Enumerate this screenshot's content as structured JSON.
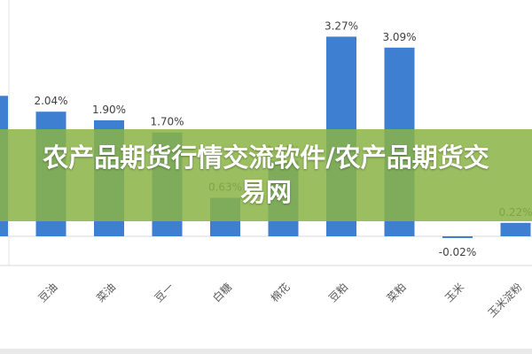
{
  "banner": {
    "title": "农产品期货行情交流软件/农产品期货交易网"
  },
  "colors": {
    "bar": "#3f7fd1",
    "banner": "#89b346",
    "label": "#404040",
    "axis": "#d9d9d9"
  },
  "chart_data": {
    "type": "bar",
    "categories": [
      "",
      "豆油",
      "菜油",
      "豆一",
      "白糖",
      "棉花",
      "豆粕",
      "菜粕",
      "玉米",
      "玉米淀粉"
    ],
    "values": [
      2.3,
      2.04,
      1.9,
      1.7,
      0.63,
      1.24,
      3.27,
      3.09,
      -0.02,
      0.22
    ],
    "data_labels": [
      "%",
      "2.04%",
      "1.90%",
      "1.70%",
      "0.63%",
      "1.24%",
      "3.27%",
      "3.09%",
      "-0.02%",
      "0.22%"
    ],
    "ylim": [
      -0.5,
      3.5
    ],
    "grid": false,
    "title": "",
    "xlabel": "",
    "ylabel": ""
  }
}
